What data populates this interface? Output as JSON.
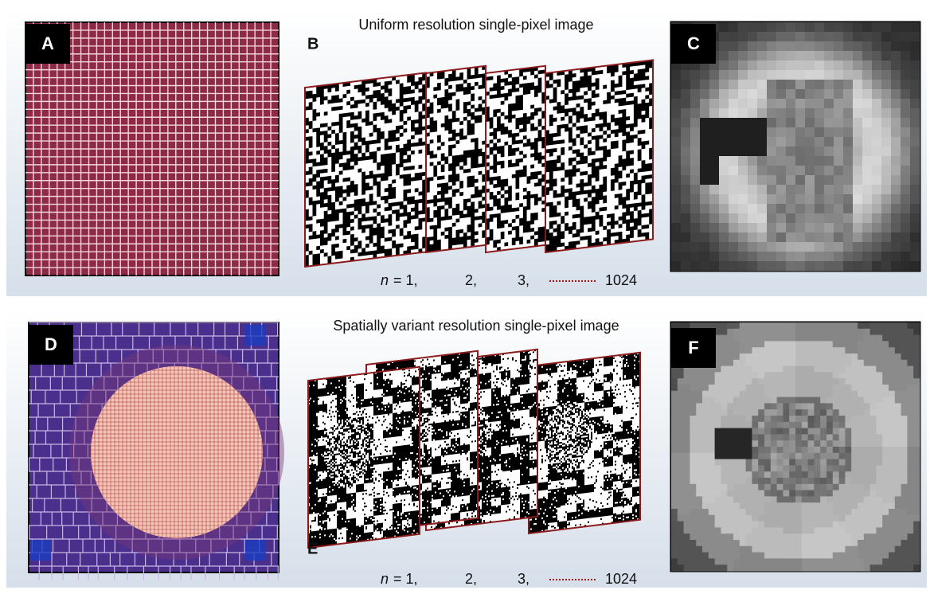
{
  "top_row": {
    "title": "Uniform resolution single-pixel image",
    "panels": {
      "pattern": "A",
      "frames": "B",
      "result": "C"
    },
    "sequence": {
      "variable": "n",
      "first": "= 1,",
      "second": "2,",
      "third": "3,",
      "last": "1024"
    }
  },
  "bottom_row": {
    "title": "Spatially variant resolution single-pixel image",
    "panels": {
      "pattern": "D",
      "frames": "E",
      "result": "F"
    },
    "sequence": {
      "variable": "n",
      "first": "= 1,",
      "second": "2,",
      "third": "3,",
      "last": "1024"
    }
  }
}
